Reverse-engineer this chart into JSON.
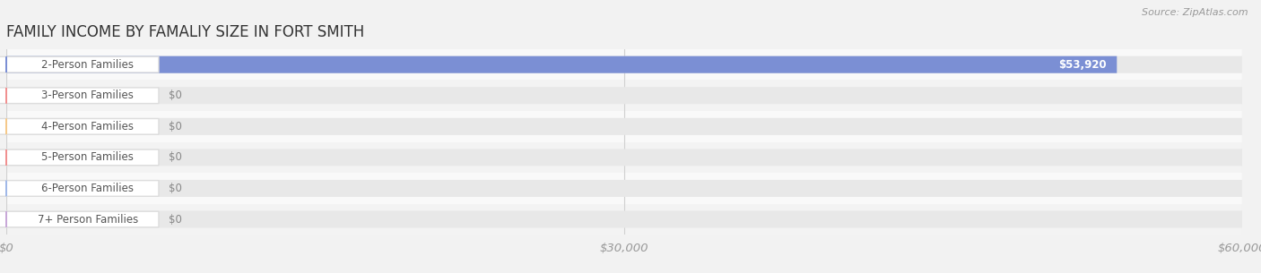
{
  "title": "FAMILY INCOME BY FAMALIY SIZE IN FORT SMITH",
  "source": "Source: ZipAtlas.com",
  "categories": [
    "2-Person Families",
    "3-Person Families",
    "4-Person Families",
    "5-Person Families",
    "6-Person Families",
    "7+ Person Families"
  ],
  "values": [
    53920,
    0,
    0,
    0,
    0,
    0
  ],
  "bar_colors": [
    "#7b8fd4",
    "#f09090",
    "#f5c98a",
    "#f09090",
    "#a0b8e8",
    "#c8a8d8"
  ],
  "xlim": [
    0,
    60000
  ],
  "xticks": [
    0,
    30000,
    60000
  ],
  "xtick_labels": [
    "$0",
    "$30,000",
    "$60,000"
  ],
  "background_color": "#f2f2f2",
  "bar_bg_color": "#e8e8e8",
  "row_bg_colors": [
    "#f8f8f8",
    "#f0f0f0"
  ],
  "title_fontsize": 12,
  "bar_height": 0.55,
  "value_label": "$53,920",
  "zero_label": "$0",
  "label_box_color": "white",
  "label_text_color": "#555555",
  "grid_color": "#d0d0d0",
  "source_color": "#999999",
  "title_color": "#333333"
}
